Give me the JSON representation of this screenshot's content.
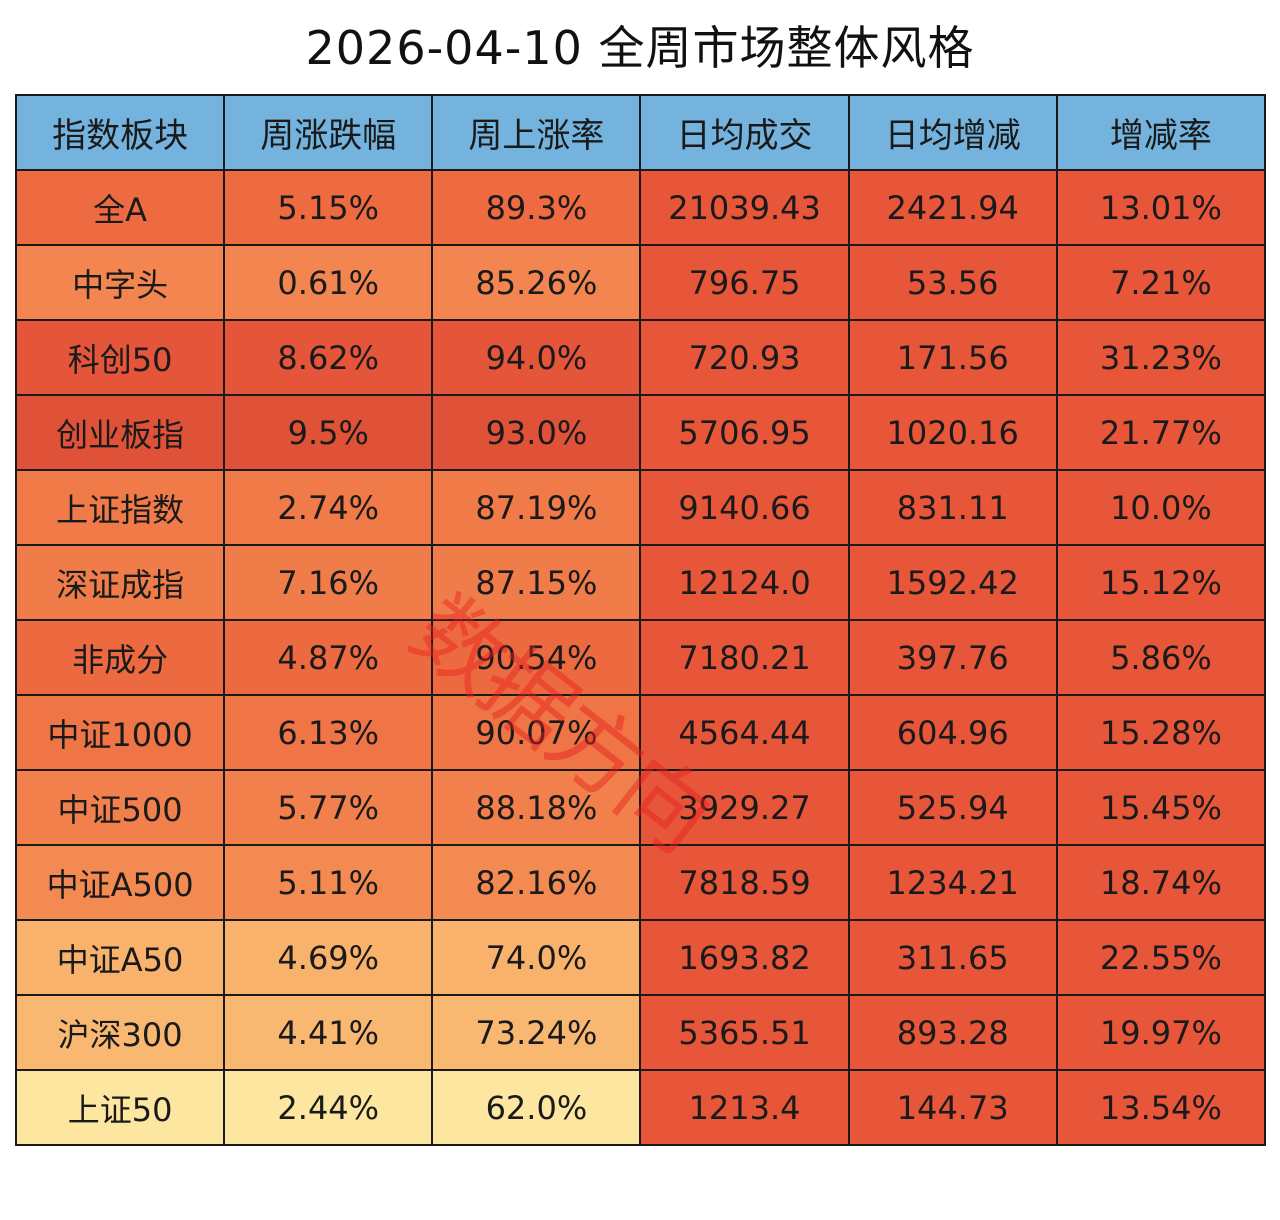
{
  "title": "2026-04-10 全周市场整体风格",
  "watermark": "数据方向",
  "chart_data": {
    "type": "table",
    "title": "2026-04-10 全周市场整体风格",
    "columns": [
      "指数板块",
      "周涨跌幅",
      "周上涨率",
      "日均成交",
      "日均增减",
      "增减率"
    ],
    "rows": [
      [
        "全A",
        "5.15%",
        "89.3%",
        "21039.43",
        "2421.94",
        "13.01%"
      ],
      [
        "中字头",
        "0.61%",
        "85.26%",
        "796.75",
        "53.56",
        "7.21%"
      ],
      [
        "科创50",
        "8.62%",
        "94.0%",
        "720.93",
        "171.56",
        "31.23%"
      ],
      [
        "创业板指",
        "9.5%",
        "93.0%",
        "5706.95",
        "1020.16",
        "21.77%"
      ],
      [
        "上证指数",
        "2.74%",
        "87.19%",
        "9140.66",
        "831.11",
        "10.0%"
      ],
      [
        "深证成指",
        "7.16%",
        "87.15%",
        "12124.0",
        "1592.42",
        "15.12%"
      ],
      [
        "非成分",
        "4.87%",
        "90.54%",
        "7180.21",
        "397.76",
        "5.86%"
      ],
      [
        "中证1000",
        "6.13%",
        "90.07%",
        "4564.44",
        "604.96",
        "15.28%"
      ],
      [
        "中证500",
        "5.77%",
        "88.18%",
        "3929.27",
        "525.94",
        "15.45%"
      ],
      [
        "中证A500",
        "5.11%",
        "82.16%",
        "7818.59",
        "1234.21",
        "18.74%"
      ],
      [
        "中证A50",
        "4.69%",
        "74.0%",
        "1693.82",
        "311.65",
        "22.55%"
      ],
      [
        "沪深300",
        "4.41%",
        "73.24%",
        "5365.51",
        "893.28",
        "19.97%"
      ],
      [
        "上证50",
        "2.44%",
        "62.0%",
        "1213.4",
        "144.73",
        "13.54%"
      ]
    ],
    "colors": {
      "header": "#73b3de",
      "right_columns": "#e8563a",
      "row_colors": [
        "#ee6a40",
        "#f28550",
        "#e4553a",
        "#e05238",
        "#f07a48",
        "#f07c4a",
        "#ed6a40",
        "#ef7446",
        "#f1804c",
        "#f38a52",
        "#f9b26c",
        "#f9b872",
        "#fde7a0"
      ]
    }
  }
}
